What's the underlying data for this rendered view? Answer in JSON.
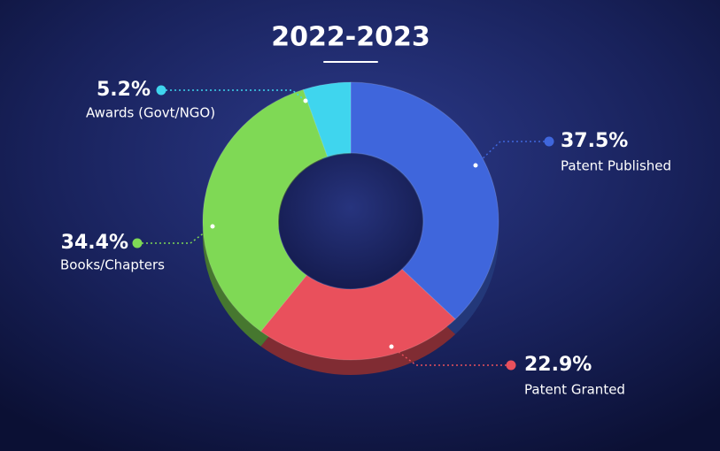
{
  "chart_data": {
    "type": "donut",
    "title": "2022-2023",
    "categories": [
      "Patent Published",
      "Patent Granted",
      "Books/Chapters",
      "Awards (Govt/NGO)"
    ],
    "values": [
      37.5,
      22.9,
      34.4,
      5.2
    ],
    "value_labels": [
      "37.5%",
      "22.9%",
      "34.4%",
      "5.2%"
    ],
    "colors": [
      "#3f66dc",
      "#e9505c",
      "#7fd955",
      "#3fd5ee"
    ]
  }
}
